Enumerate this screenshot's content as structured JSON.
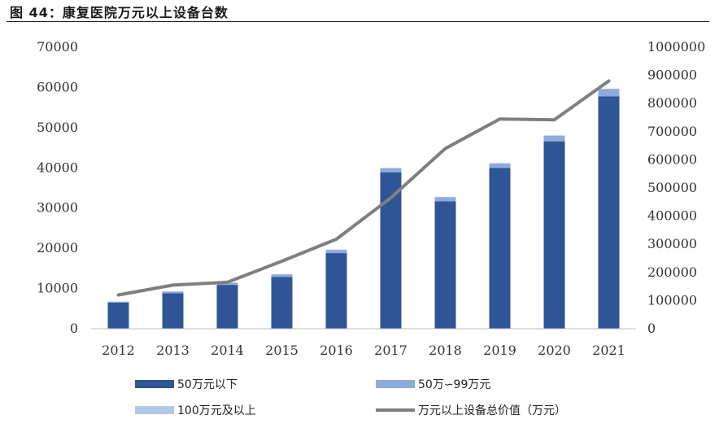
{
  "figure_title": "图 44：康复医院万元以上设备台数",
  "chart_data": {
    "type": "bar",
    "title": "",
    "categories": [
      "2012",
      "2013",
      "2014",
      "2015",
      "2016",
      "2017",
      "2018",
      "2019",
      "2020",
      "2021"
    ],
    "series": [
      {
        "name": "50万元以下",
        "type": "bar",
        "axis": "left",
        "color": "#2f5597",
        "values": [
          6500,
          8800,
          10900,
          12900,
          18800,
          38900,
          31700,
          40000,
          46600,
          57800
        ]
      },
      {
        "name": "50万∽99万元",
        "type": "bar",
        "axis": "left",
        "color": "#8faadc",
        "values": [
          200,
          400,
          500,
          600,
          800,
          1000,
          1000,
          1100,
          1400,
          1800
        ]
      },
      {
        "name": "100万元及以上",
        "type": "bar",
        "axis": "left",
        "color": "#b4c7e7",
        "values": [
          100,
          100,
          100,
          100,
          100,
          100,
          100,
          100,
          100,
          100
        ]
      },
      {
        "name": "万元以上设备总价值（万元）",
        "type": "line",
        "axis": "right",
        "color": "#7f7f7f",
        "values": [
          120000,
          155000,
          165000,
          240000,
          318000,
          465000,
          640000,
          745000,
          742000,
          880000
        ]
      }
    ],
    "y_left": {
      "min": 0,
      "max": 70000,
      "ticks": [
        0,
        10000,
        20000,
        30000,
        40000,
        50000,
        60000,
        70000
      ]
    },
    "y_right": {
      "min": 0,
      "max": 1000000,
      "ticks": [
        0,
        100000,
        200000,
        300000,
        400000,
        500000,
        600000,
        700000,
        800000,
        900000,
        1000000
      ]
    },
    "grid": false,
    "legend_position": "bottom"
  }
}
